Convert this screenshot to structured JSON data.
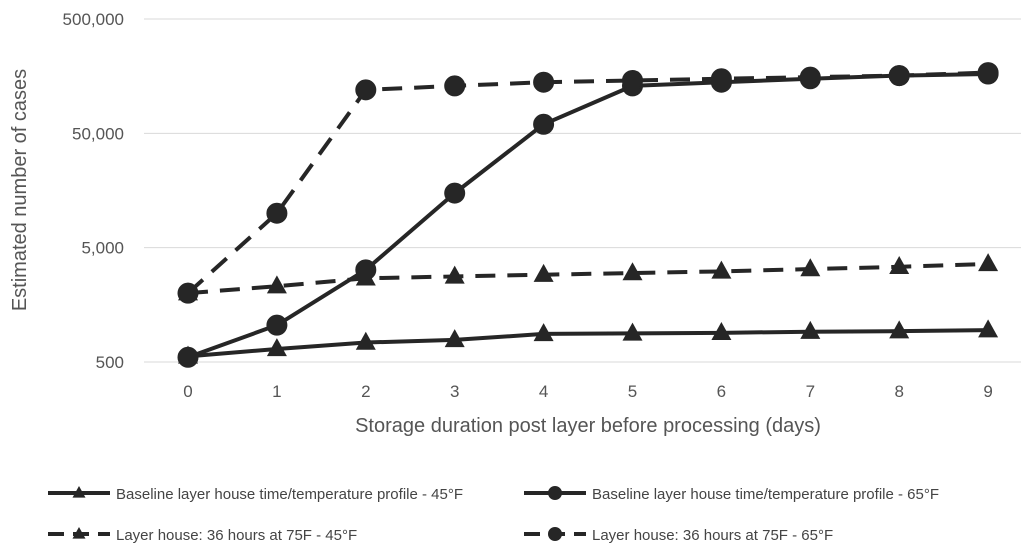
{
  "chart_data": {
    "type": "line",
    "title": "",
    "xlabel": "Storage duration post layer before processing (days)",
    "ylabel": "Estimated number of cases",
    "x": [
      0,
      1,
      2,
      3,
      4,
      5,
      6,
      7,
      8,
      9
    ],
    "y_scale": "log",
    "ylim": [
      500,
      500000
    ],
    "y_ticks": [
      500,
      5000,
      50000,
      500000
    ],
    "y_tick_labels": [
      "500",
      "5,000",
      "50,000",
      "500,000"
    ],
    "grid": "horizontal",
    "legend_position": "bottom",
    "series": [
      {
        "name": "Baseline layer house time/temperature profile - 45°F",
        "style": "solid",
        "marker": "triangle",
        "values": [
          560,
          650,
          740,
          780,
          880,
          890,
          900,
          920,
          930,
          950
        ]
      },
      {
        "name": "Baseline layer house time/temperature profile - 65°F",
        "style": "solid",
        "marker": "circle",
        "values": [
          550,
          1050,
          3200,
          15000,
          60000,
          130000,
          140000,
          150000,
          160000,
          165000
        ]
      },
      {
        "name": "Layer house: 36 hours at 75F - 45°F",
        "style": "dashed",
        "marker": "triangle",
        "values": [
          2000,
          2300,
          2700,
          2800,
          2900,
          3000,
          3100,
          3250,
          3400,
          3600
        ]
      },
      {
        "name": "Layer house: 36 hours at 75F - 65°F",
        "style": "dashed",
        "marker": "circle",
        "values": [
          2000,
          10000,
          120000,
          130000,
          140000,
          145000,
          150000,
          155000,
          160000,
          170000
        ]
      }
    ]
  }
}
